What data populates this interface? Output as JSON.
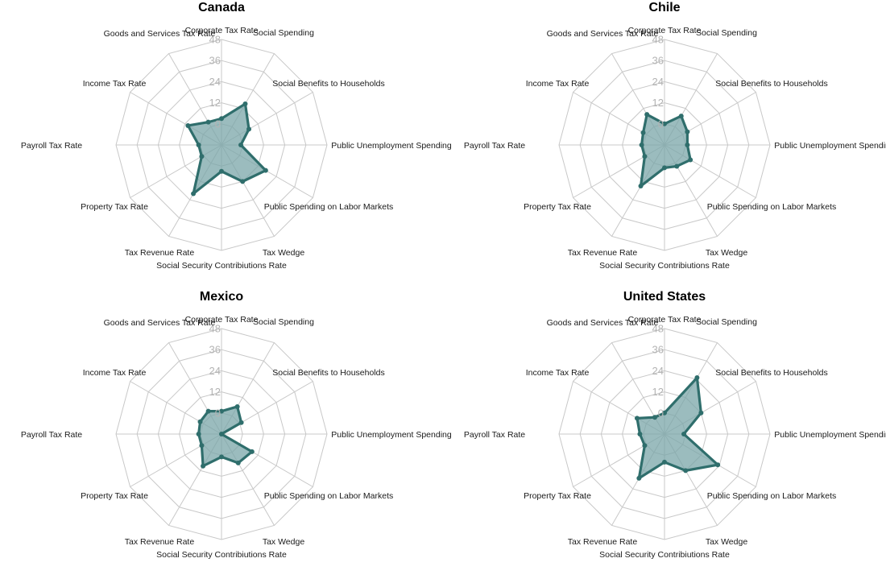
{
  "chart_data": [
    {
      "type": "radar",
      "title": "Canada",
      "axes": [
        "Corporate Tax Rate",
        "Social Spending",
        "Social Benefits to Households",
        "Public Unemployment Spending",
        "Public Spending on Labor Markets",
        "Tax Wedge",
        "Social Security Contribiutions Rate",
        "Tax Revenue Rate",
        "Property Tax Rate",
        "Payroll Tax Rate",
        "Income Tax Rate",
        "Goods and Services Tax Rate"
      ],
      "rings": [
        0,
        12,
        24,
        36,
        48
      ],
      "range": [
        -12,
        48
      ],
      "values": [
        3,
        15,
        6,
        -1,
        17,
        12,
        3,
        20,
        1,
        1,
        10,
        3
      ]
    },
    {
      "type": "radar",
      "title": "Chile",
      "axes": [
        "Corporate Tax Rate",
        "Social Spending",
        "Social Benefits to Households",
        "Public Unemployment Spending",
        "Public Spending on Labor Markets",
        "Tax Wedge",
        "Social Security Contribiutions Rate",
        "Tax Revenue Rate",
        "Property Tax Rate",
        "Payroll Tax Rate",
        "Income Tax Rate",
        "Goods and Services Tax Rate"
      ],
      "rings": [
        0,
        12,
        24,
        36,
        48
      ],
      "range": [
        -12,
        48
      ],
      "values": [
        0,
        7,
        3,
        1,
        5,
        2,
        1,
        15,
        1,
        1,
        2,
        8
      ]
    },
    {
      "type": "radar",
      "title": "Mexico",
      "axes": [
        "Corporate Tax Rate",
        "Social Spending",
        "Social Benefits to Households",
        "Public Unemployment Spending",
        "Public Spending on Labor Markets",
        "Tax Wedge",
        "Social Security Contribiutions Rate",
        "Tax Revenue Rate",
        "Property Tax Rate",
        "Payroll Tax Rate",
        "Income Tax Rate",
        "Goods and Services Tax Rate"
      ],
      "rings": [
        0,
        12,
        24,
        36,
        48
      ],
      "range": [
        -12,
        48
      ],
      "values": [
        1,
        6,
        1,
        -12,
        8,
        7,
        1,
        9,
        1,
        1,
        2,
        3
      ]
    },
    {
      "type": "radar",
      "title": "United States",
      "axes": [
        "Corporate Tax Rate",
        "Social Spending",
        "Social Benefits to Households",
        "Public Unemployment Spending",
        "Public Spending on Labor Markets",
        "Tax Wedge",
        "Social Security Contribiutions Rate",
        "Tax Revenue Rate",
        "Property Tax Rate",
        "Payroll Tax Rate",
        "Income Tax Rate",
        "Goods and Services Tax Rate"
      ],
      "rings": [
        0,
        12,
        24,
        36,
        48
      ],
      "range": [
        -12,
        48
      ],
      "values": [
        0,
        25,
        12,
        -1,
        23,
        12,
        4,
        17,
        1,
        2,
        6,
        -1
      ]
    }
  ],
  "colors": {
    "series_line": "#2f6e6c",
    "series_fill": "#7aa6a8",
    "grid": "#c8c8c8",
    "ring_label": "#b3b3b3"
  }
}
